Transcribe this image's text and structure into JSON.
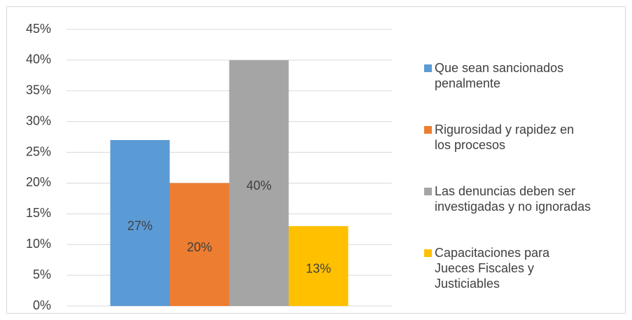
{
  "chart_data": {
    "type": "bar",
    "categories": [
      null
    ],
    "series": [
      {
        "name": "Que sean sancionados penalmente",
        "color": "#5b9bd5",
        "values": [
          27
        ],
        "value_labels": [
          "27%"
        ]
      },
      {
        "name": "Rigurosidad y rapidez en los procesos",
        "color": "#ed7d31",
        "values": [
          20
        ],
        "value_labels": [
          "20%"
        ]
      },
      {
        "name": "Las denuncias deben ser investigadas y no ignoradas",
        "color": "#a5a5a5",
        "values": [
          40
        ],
        "value_labels": [
          "40%"
        ]
      },
      {
        "name": "Capacitaciones para Jueces Fiscales y Justiciables",
        "color": "#ffc000",
        "values": [
          13
        ],
        "value_labels": [
          "13%"
        ]
      }
    ],
    "ylim": [
      0,
      45
    ],
    "yticks": [
      {
        "value": 0,
        "label": "0%"
      },
      {
        "value": 5,
        "label": "5%"
      },
      {
        "value": 10,
        "label": "10%"
      },
      {
        "value": 15,
        "label": "15%"
      },
      {
        "value": 20,
        "label": "20%"
      },
      {
        "value": 25,
        "label": "25%"
      },
      {
        "value": 30,
        "label": "30%"
      },
      {
        "value": 35,
        "label": "35%"
      },
      {
        "value": 40,
        "label": "40%"
      },
      {
        "value": 45,
        "label": "45%"
      }
    ],
    "grid": true,
    "legend": "right"
  }
}
